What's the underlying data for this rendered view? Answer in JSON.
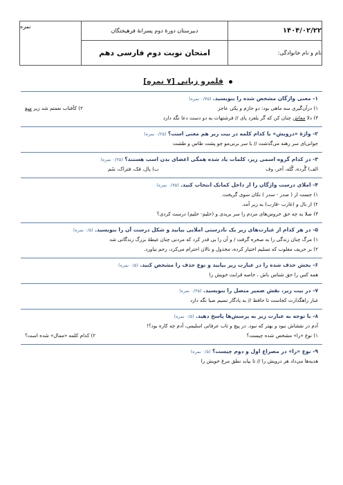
{
  "header": {
    "date": "۱۴۰۴/۰۲/۲۲",
    "name_label": "نام و نام خانوادگی:",
    "school": "دبیرستان دورهٔ دوم پسرانهٔ فرهیختگان",
    "exam_title": "امتحان نوبت دوم فارسی دهم",
    "score_label": "نمره"
  },
  "section": {
    "title": "قلمرو زبانی [۷ نمره]"
  },
  "q1": {
    "head": "۱- معنی واژگان مشخص شده را بنویسید.",
    "points": "(۰/۷۵ نمره)",
    "a": "۱) درآن‌گیری سه ماهی بود: دو حازم و یکی عاجز",
    "b_pre": "۲) کآفتاب نعمتم شد زیر ",
    "b_word": "میغ",
    "c_pre": "۳) دلا ",
    "c_word": "معاش",
    "c_post": " چنان کن که گر بلغزد پای // فرشتهات به دو دست دعا نگه دارد"
  },
  "q2": {
    "head": "۲- واژهٔ «درویش» با کدام کلمه در بیت زیر هم معنی است؟",
    "points": "(۰/۲۵ نمره)",
    "line": "جوانی‌ای سر رهنه می‌گذشت  //  با سر برنی‌مو چو پشت طاس و طشت"
  },
  "q3": {
    "head": "۳- در کدام گروه اسمی زیر، کلمات یاد شده همگی اعضای بدن اسب هستند؟",
    "points": "(۰/۲۵ نمره)",
    "a": "الف) گُرده، گُله، آخر، وف",
    "b": "ب) یال، فک، فتراک، سُم"
  },
  "q4": {
    "head": "۴- املای درست واژگان را از داخل کمانک انتخاب کنید.",
    "points": "(۰/۷۵ نمره)",
    "l1": "۱) جست از ( صدر - سدر ) نکان سوی گریخت.",
    "l2": "۲) از بال و (غارب -قارب) به زیر آمد.",
    "l3": "۳) صلا به چه حق خروس‌های مردم را سر بریدی و (حلیم- حلیم) درست کردی؟"
  },
  "q5": {
    "head": "۵- در هر کدام از عبارت‌های زیر یک نادرستی املایی بیابید و شکل درست آن را بنویسید.",
    "points": "(۰/۵ نمره)",
    "l1": "۱) مرگ چنان زندگی را به صخره گرفت / و آن را بی قدر کرد که مردنی چنان غبطهٔ بزرگ زندگانی شد",
    "l2": "۲) بر حریف مغلوب که تسلیم اختیار کرده، مخذول و نالان احترام می‌کرد، رحم نیاورد."
  },
  "q6": {
    "head": "۶- بخش حذف شده را در عبارت زیر بیابید و نوع حذف را مشخص کنید.",
    "points": "(۰/۵ نمره)",
    "line": "همه کس را حق شناس باش ، خاصه قرابت خویش را"
  },
  "q7": {
    "head": "۷- در بیت زیر، نقش ضمیر متصل را بنویسید.",
    "points": "(۰/۲۵ نمره)",
    "line": "غبار راهگذارت کجاست تا حافظ // به یادگار نسیم صبا نگه دارد"
  },
  "q8": {
    "head": "۸- با توجه به عبارت زیر به پرسش‌ها پاسخ دهید.",
    "points": "(۰/۵ نمره)",
    "text": "آدم در نقشاش نبود و بهتر که نبود. در پیچ و تاب عرفانی اسلیمی، آدم چه کاره بود؟!",
    "a": "۱) نوع «را» مشخص شده چیست؟",
    "b": "۲) کدام کلمه «ممال» شده است؟"
  },
  "q9": {
    "head": "۹- نوع «را» در مصراع اول و دوم چیست؟",
    "points": "(۰/۵ نمره)",
    "line": "هدیه‌ها می‌داد هر درویش را  //  تا بیابد نطق مرغ خویش را"
  }
}
